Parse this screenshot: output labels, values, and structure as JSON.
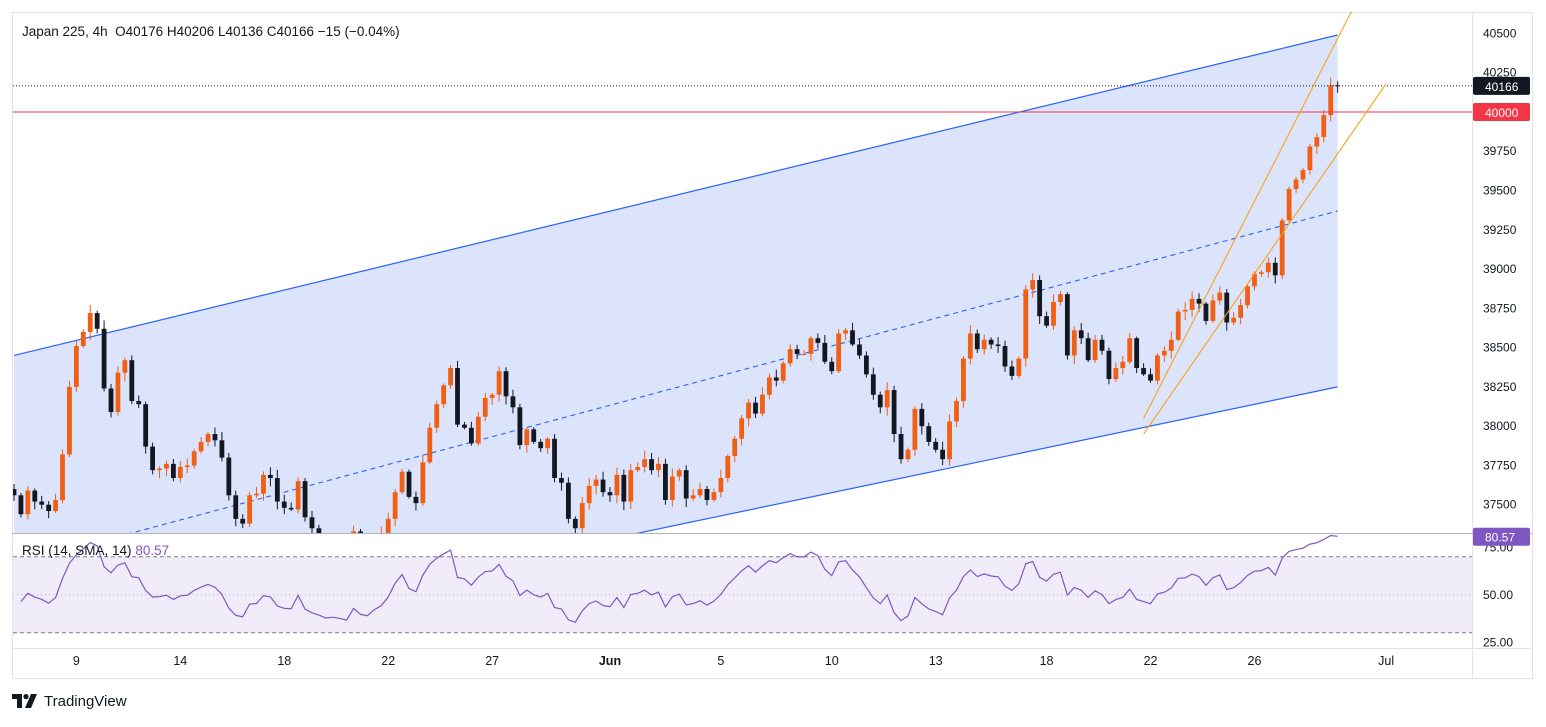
{
  "header": {
    "symbol": "Japan 225",
    "interval": "4h",
    "ohlc": "O40176  H40206  L40136  C40166  −15 (−0.04%)"
  },
  "rsi": {
    "label": "RSI (14, SMA, 14)",
    "value": "80.57",
    "levels": [
      70,
      50,
      30
    ],
    "axis_ticks": [
      "75.00",
      "50.00",
      "25.00"
    ],
    "color": "#7e57c2"
  },
  "price_axis": {
    "ticks": [
      "40500",
      "40250",
      "39750",
      "39500",
      "39250",
      "39000",
      "38750",
      "38500",
      "38250",
      "38000",
      "37750",
      "37500"
    ],
    "current_price_label": "40166",
    "level_label": "40000"
  },
  "time_axis": {
    "ticks": [
      "9",
      "14",
      "18",
      "22",
      "27",
      "Jun",
      "5",
      "10",
      "13",
      "18",
      "22",
      "26",
      "Jul"
    ]
  },
  "branding": {
    "name": "TradingView"
  },
  "colors": {
    "up": "#f05f14",
    "down": "#131722",
    "channel_line": "#2962ff",
    "channel_fill": "#dbe4fb",
    "minor_channel": "#f7a21b",
    "level_line": "#f23645",
    "rsi_fill": "#f0ecfa"
  },
  "chart_data": {
    "type": "candlestick",
    "title": "Japan 225, 4h",
    "y_range": [
      37320,
      40630
    ],
    "candle_closes": [
      37560,
      37440,
      37590,
      37520,
      37500,
      37460,
      37530,
      37820,
      38250,
      38510,
      38600,
      38720,
      38620,
      38240,
      38090,
      38340,
      38420,
      38160,
      38140,
      37870,
      37720,
      37730,
      37760,
      37670,
      37740,
      37750,
      37840,
      37900,
      37950,
      37910,
      37800,
      37560,
      37410,
      37380,
      37560,
      37570,
      37690,
      37670,
      37520,
      37480,
      37470,
      37650,
      37420,
      37350,
      37310,
      37250,
      37260,
      37240,
      37210,
      37330,
      37240,
      37220,
      37280,
      37320,
      37410,
      37580,
      37710,
      37550,
      37510,
      37770,
      37990,
      38140,
      38260,
      38370,
      38010,
      37990,
      37890,
      38060,
      38180,
      38200,
      38350,
      38190,
      38120,
      37880,
      37980,
      37900,
      37860,
      37920,
      37670,
      37640,
      37410,
      37350,
      37510,
      37620,
      37660,
      37580,
      37560,
      37690,
      37520,
      37720,
      37740,
      37790,
      37720,
      37760,
      37530,
      37680,
      37720,
      37540,
      37560,
      37600,
      37530,
      37580,
      37670,
      37810,
      37920,
      38050,
      38150,
      38080,
      38200,
      38310,
      38290,
      38400,
      38490,
      38460,
      38460,
      38560,
      38530,
      38410,
      38350,
      38590,
      38610,
      38520,
      38450,
      38330,
      38200,
      38120,
      38230,
      37950,
      37790,
      37850,
      38110,
      38000,
      37900,
      37850,
      37790,
      38030,
      38160,
      38430,
      38590,
      38490,
      38550,
      38520,
      38510,
      38380,
      38320,
      38430,
      38870,
      38930,
      38700,
      38640,
      38790,
      38840,
      38450,
      38610,
      38560,
      38420,
      38550,
      38480,
      38300,
      38370,
      38410,
      38560,
      38370,
      38330,
      38290,
      38450,
      38480,
      38550,
      38730,
      38740,
      38810,
      38780,
      38670,
      38800,
      38850,
      38660,
      38690,
      38770,
      38890,
      38970,
      38980,
      39040,
      38960,
      39310,
      39510,
      39570,
      39630,
      39780,
      39840,
      39980,
      40170,
      40166
    ],
    "series_note": "",
    "upper_channel": {
      "from": [
        0,
        38450
      ],
      "to": [
        191,
        40490
      ]
    },
    "lower_channel": {
      "from": [
        88,
        37300
      ],
      "to": [
        191,
        38250
      ]
    },
    "mid_channel": {
      "from": [
        0,
        37120
      ],
      "to": [
        191,
        39370
      ]
    },
    "horizontal_level": 40000,
    "last_price": 40166,
    "rsi_last": 80.57,
    "rsi_range": [
      22,
      82
    ]
  }
}
